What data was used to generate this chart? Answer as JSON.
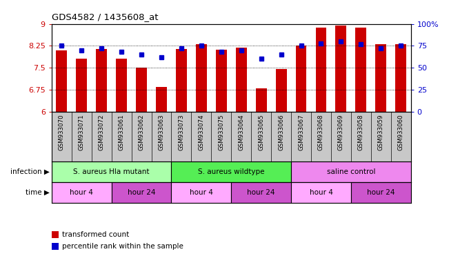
{
  "title": "GDS4582 / 1435608_at",
  "samples": [
    "GSM933070",
    "GSM933071",
    "GSM933072",
    "GSM933061",
    "GSM933062",
    "GSM933063",
    "GSM933073",
    "GSM933074",
    "GSM933075",
    "GSM933064",
    "GSM933065",
    "GSM933066",
    "GSM933067",
    "GSM933068",
    "GSM933069",
    "GSM933058",
    "GSM933059",
    "GSM933060"
  ],
  "bar_values": [
    8.1,
    7.8,
    8.15,
    7.82,
    7.5,
    6.85,
    8.15,
    8.3,
    8.12,
    8.18,
    6.8,
    7.45,
    8.25,
    8.88,
    8.95,
    8.88,
    8.3,
    8.3
  ],
  "dot_values": [
    75,
    70,
    72,
    68,
    65,
    62,
    72,
    75,
    68,
    70,
    60,
    65,
    75,
    78,
    80,
    77,
    72,
    75
  ],
  "ylim_left": [
    6,
    9
  ],
  "ylim_right": [
    0,
    100
  ],
  "yticks_left": [
    6,
    6.75,
    7.5,
    8.25,
    9
  ],
  "yticks_right": [
    0,
    25,
    50,
    75,
    100
  ],
  "ytick_labels_right": [
    "0",
    "25",
    "50",
    "75",
    "100%"
  ],
  "bar_color": "#cc0000",
  "dot_color": "#0000cc",
  "infection_groups": [
    {
      "label": "S. aureus Hla mutant",
      "start": 0,
      "end": 6,
      "color": "#aaffaa"
    },
    {
      "label": "S. aureus wildtype",
      "start": 6,
      "end": 12,
      "color": "#55ee55"
    },
    {
      "label": "saline control",
      "start": 12,
      "end": 18,
      "color": "#ee88ee"
    }
  ],
  "time_groups": [
    {
      "label": "hour 4",
      "start": 0,
      "end": 3,
      "color": "#ffaaff"
    },
    {
      "label": "hour 24",
      "start": 3,
      "end": 6,
      "color": "#cc55cc"
    },
    {
      "label": "hour 4",
      "start": 6,
      "end": 9,
      "color": "#ffaaff"
    },
    {
      "label": "hour 24",
      "start": 9,
      "end": 12,
      "color": "#cc55cc"
    },
    {
      "label": "hour 4",
      "start": 12,
      "end": 15,
      "color": "#ffaaff"
    },
    {
      "label": "hour 24",
      "start": 15,
      "end": 18,
      "color": "#cc55cc"
    }
  ],
  "legend_items": [
    {
      "label": "transformed count",
      "color": "#cc0000"
    },
    {
      "label": "percentile rank within the sample",
      "color": "#0000cc"
    }
  ],
  "xlabel_infection": "infection",
  "xlabel_time": "time",
  "label_bg_color": "#c8c8c8",
  "gridline_color": "#000000",
  "gridline_yticks": [
    6.75,
    7.5,
    8.25
  ]
}
